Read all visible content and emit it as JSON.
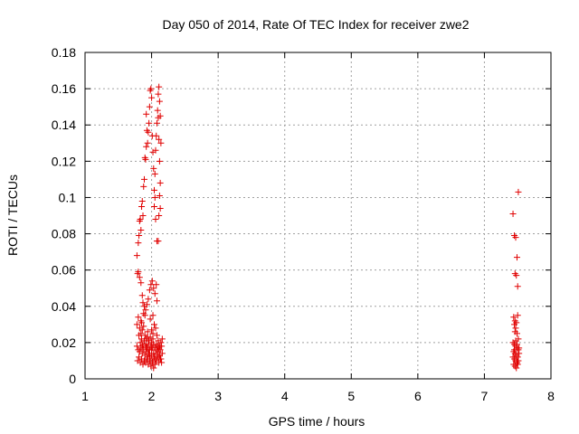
{
  "chart_data": {
    "type": "scatter",
    "title": "Day 050 of 2014, Rate Of TEC Index for receiver zwe2",
    "xlabel": "GPS time / hours",
    "ylabel": "ROTI / TECUs",
    "xlim": [
      1,
      8
    ],
    "ylim": [
      0,
      0.18
    ],
    "xticks": [
      1,
      2,
      3,
      4,
      5,
      6,
      7,
      8
    ],
    "xtick_labels": [
      "1",
      "2",
      "3",
      "4",
      "5",
      "6",
      "7",
      "8"
    ],
    "yticks": [
      0,
      0.02,
      0.04,
      0.06,
      0.08,
      0.1,
      0.12,
      0.14,
      0.16,
      0.18
    ],
    "ytick_labels": [
      "0",
      "0.02",
      "0.04",
      "0.06",
      "0.08",
      "0.1",
      "0.12",
      "0.14",
      "0.16",
      "0.18"
    ],
    "grid": true,
    "marker": "plus",
    "color": "#e00000",
    "grid_color": "#a0a0a0",
    "series": [
      {
        "name": "ROTI",
        "points": [
          [
            1.78,
            0.068
          ],
          [
            1.79,
            0.058
          ],
          [
            1.8,
            0.075
          ],
          [
            1.81,
            0.079
          ],
          [
            1.82,
            0.087
          ],
          [
            1.83,
            0.088
          ],
          [
            1.84,
            0.082
          ],
          [
            1.85,
            0.095
          ],
          [
            1.86,
            0.098
          ],
          [
            1.87,
            0.09
          ],
          [
            1.88,
            0.106
          ],
          [
            1.89,
            0.11
          ],
          [
            1.9,
            0.122
          ],
          [
            1.91,
            0.121
          ],
          [
            1.92,
            0.128
          ],
          [
            1.92,
            0.146
          ],
          [
            1.93,
            0.137
          ],
          [
            1.94,
            0.13
          ],
          [
            1.95,
            0.136
          ],
          [
            1.96,
            0.141
          ],
          [
            1.97,
            0.15
          ],
          [
            1.98,
            0.159
          ],
          [
            1.99,
            0.16
          ],
          [
            2.0,
            0.155
          ],
          [
            2.01,
            0.134
          ],
          [
            2.02,
            0.125
          ],
          [
            2.03,
            0.116
          ],
          [
            2.04,
            0.104
          ],
          [
            2.05,
            0.113
          ],
          [
            2.06,
            0.126
          ],
          [
            2.07,
            0.134
          ],
          [
            2.08,
            0.141
          ],
          [
            2.09,
            0.148
          ],
          [
            2.1,
            0.157
          ],
          [
            2.11,
            0.161
          ],
          [
            2.12,
            0.153
          ],
          [
            2.1,
            0.144
          ],
          [
            2.11,
            0.132
          ],
          [
            2.12,
            0.12
          ],
          [
            2.13,
            0.108
          ],
          [
            2.12,
            0.101
          ],
          [
            2.13,
            0.094
          ],
          [
            2.11,
            0.09
          ],
          [
            2.08,
            0.076
          ],
          [
            2.1,
            0.076
          ],
          [
            2.06,
            0.088
          ],
          [
            2.04,
            0.095
          ],
          [
            2.14,
            0.13
          ],
          [
            2.13,
            0.145
          ],
          [
            2.05,
            0.1
          ],
          [
            1.8,
            0.059
          ],
          [
            1.82,
            0.056
          ],
          [
            1.84,
            0.053
          ],
          [
            1.86,
            0.046
          ],
          [
            1.87,
            0.042
          ],
          [
            1.89,
            0.04
          ],
          [
            1.91,
            0.038
          ],
          [
            1.93,
            0.041
          ],
          [
            1.95,
            0.044
          ],
          [
            1.97,
            0.049
          ],
          [
            1.99,
            0.052
          ],
          [
            2.01,
            0.054
          ],
          [
            2.03,
            0.05
          ],
          [
            2.05,
            0.047
          ],
          [
            2.07,
            0.052
          ],
          [
            2.08,
            0.043
          ],
          [
            2.02,
            0.035
          ],
          [
            1.98,
            0.033
          ],
          [
            1.9,
            0.035
          ],
          [
            1.85,
            0.031
          ],
          [
            1.78,
            0.03
          ],
          [
            1.8,
            0.034
          ],
          [
            1.82,
            0.028
          ],
          [
            1.84,
            0.025
          ],
          [
            1.86,
            0.027
          ],
          [
            1.88,
            0.029
          ],
          [
            1.9,
            0.024
          ],
          [
            1.92,
            0.022
          ],
          [
            1.94,
            0.026
          ],
          [
            1.96,
            0.021
          ],
          [
            1.98,
            0.023
          ],
          [
            2.0,
            0.02
          ],
          [
            2.02,
            0.025
          ],
          [
            2.04,
            0.03
          ],
          [
            2.06,
            0.028
          ],
          [
            2.08,
            0.024
          ],
          [
            2.1,
            0.021
          ],
          [
            2.12,
            0.018
          ],
          [
            2.14,
            0.02
          ],
          [
            2.16,
            0.022
          ],
          [
            1.78,
            0.018
          ],
          [
            1.8,
            0.016
          ],
          [
            1.82,
            0.015
          ],
          [
            1.84,
            0.017
          ],
          [
            1.86,
            0.014
          ],
          [
            1.88,
            0.016
          ],
          [
            1.9,
            0.013
          ],
          [
            1.92,
            0.015
          ],
          [
            1.94,
            0.012
          ],
          [
            1.96,
            0.014
          ],
          [
            1.98,
            0.011
          ],
          [
            2.0,
            0.013
          ],
          [
            2.02,
            0.01
          ],
          [
            2.04,
            0.012
          ],
          [
            2.06,
            0.014
          ],
          [
            2.08,
            0.016
          ],
          [
            2.1,
            0.015
          ],
          [
            2.12,
            0.013
          ],
          [
            2.14,
            0.011
          ],
          [
            2.16,
            0.014
          ],
          [
            1.79,
            0.01
          ],
          [
            1.81,
            0.012
          ],
          [
            1.83,
            0.009
          ],
          [
            1.85,
            0.011
          ],
          [
            1.87,
            0.008
          ],
          [
            1.89,
            0.01
          ],
          [
            1.91,
            0.009
          ],
          [
            1.93,
            0.011
          ],
          [
            1.95,
            0.008
          ],
          [
            1.97,
            0.01
          ],
          [
            1.99,
            0.007
          ],
          [
            2.01,
            0.009
          ],
          [
            2.03,
            0.006
          ],
          [
            2.05,
            0.008
          ],
          [
            2.07,
            0.01
          ],
          [
            2.09,
            0.012
          ],
          [
            2.11,
            0.009
          ],
          [
            2.13,
            0.011
          ],
          [
            2.15,
            0.009
          ],
          [
            2.0,
            0.016
          ],
          [
            1.83,
            0.02
          ],
          [
            1.85,
            0.022
          ],
          [
            1.87,
            0.019
          ],
          [
            1.89,
            0.021
          ],
          [
            1.91,
            0.018
          ],
          [
            1.93,
            0.017
          ],
          [
            1.95,
            0.019
          ],
          [
            1.97,
            0.016
          ],
          [
            1.99,
            0.018
          ],
          [
            2.01,
            0.017
          ],
          [
            2.03,
            0.019
          ],
          [
            2.05,
            0.017
          ],
          [
            2.07,
            0.019
          ],
          [
            2.09,
            0.018
          ],
          [
            2.11,
            0.017
          ],
          [
            2.13,
            0.016
          ],
          [
            2.15,
            0.018
          ],
          [
            1.81,
            0.024
          ],
          [
            1.84,
            0.032
          ],
          [
            1.88,
            0.036
          ],
          [
            2.03,
            0.014
          ],
          [
            1.97,
            0.013
          ],
          [
            1.95,
            0.016
          ],
          [
            2.06,
            0.011
          ],
          [
            2.1,
            0.013
          ],
          [
            1.92,
            0.019
          ],
          [
            1.86,
            0.018
          ],
          [
            2.02,
            0.022
          ],
          [
            1.94,
            0.023
          ],
          [
            2.0,
            0.027
          ],
          [
            7.43,
            0.091
          ],
          [
            7.45,
            0.079
          ],
          [
            7.47,
            0.078
          ],
          [
            7.49,
            0.067
          ],
          [
            7.46,
            0.058
          ],
          [
            7.48,
            0.057
          ],
          [
            7.5,
            0.051
          ],
          [
            7.51,
            0.103
          ],
          [
            7.44,
            0.034
          ],
          [
            7.46,
            0.032
          ],
          [
            7.48,
            0.031
          ],
          [
            7.5,
            0.035
          ],
          [
            7.45,
            0.03
          ],
          [
            7.47,
            0.028
          ],
          [
            7.49,
            0.025
          ],
          [
            7.51,
            0.022
          ],
          [
            7.43,
            0.02
          ],
          [
            7.45,
            0.019
          ],
          [
            7.47,
            0.018
          ],
          [
            7.49,
            0.017
          ],
          [
            7.51,
            0.016
          ],
          [
            7.44,
            0.015
          ],
          [
            7.46,
            0.014
          ],
          [
            7.48,
            0.013
          ],
          [
            7.5,
            0.012
          ],
          [
            7.52,
            0.014
          ],
          [
            7.43,
            0.012
          ],
          [
            7.45,
            0.011
          ],
          [
            7.47,
            0.01
          ],
          [
            7.49,
            0.009
          ],
          [
            7.51,
            0.01
          ],
          [
            7.44,
            0.008
          ],
          [
            7.46,
            0.007
          ],
          [
            7.48,
            0.006
          ],
          [
            7.5,
            0.008
          ],
          [
            7.52,
            0.017
          ],
          [
            7.45,
            0.016
          ],
          [
            7.47,
            0.021
          ],
          [
            7.49,
            0.019
          ],
          [
            7.46,
            0.026
          ]
        ]
      }
    ]
  }
}
